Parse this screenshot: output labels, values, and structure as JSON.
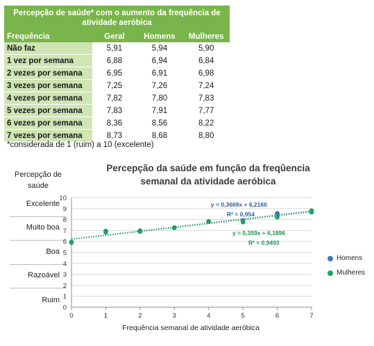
{
  "table": {
    "title": "Percepção de saúde* com o aumento da frequência de atividade aeróbica",
    "headers": [
      "Frequência",
      "Geral",
      "Homens",
      "Mulheres"
    ],
    "rows": [
      {
        "label": "Não faz",
        "geral": "5,91",
        "homens": "5,94",
        "mulheres": "5,90"
      },
      {
        "label": "1 vez por semana",
        "geral": "6,88",
        "homens": "6,94",
        "mulheres": "6,84"
      },
      {
        "label": "2 vezes por semana",
        "geral": "6,95",
        "homens": "6,91",
        "mulheres": "6,98"
      },
      {
        "label": "3 vezes por semana",
        "geral": "7,25",
        "homens": "7,26",
        "mulheres": "7,24"
      },
      {
        "label": "4 vezes por semana",
        "geral": "7,82",
        "homens": "7,80",
        "mulheres": "7,83"
      },
      {
        "label": "5 vezes por semana",
        "geral": "7,83",
        "homens": "7,91",
        "mulheres": "7,77"
      },
      {
        "label": "6 vezes por semana",
        "geral": "8,36",
        "homens": "8,56",
        "mulheres": "8,22"
      },
      {
        "label": "7 vezes por semana",
        "geral": "8,73",
        "homens": "8,68",
        "mulheres": "8,80"
      }
    ],
    "note": "*considerada de 1 (ruim) a 10 (excelente)"
  },
  "side_scale": {
    "title": "Percepção de saúde",
    "levels": [
      "Excelente",
      "Muito boa",
      "Boa",
      "Razoável",
      "Ruim"
    ]
  },
  "chart_data": {
    "type": "scatter",
    "title": "Percepção da saúde em função da freqûencia semanal da atividade aeróbica",
    "xlabel": "Frequência semanal de atividade aeróbica",
    "ylabel": "",
    "xlim": [
      0,
      7
    ],
    "ylim": [
      0,
      10
    ],
    "x_ticks": [
      0,
      1,
      2,
      3,
      4,
      5,
      6,
      7
    ],
    "y_ticks": [
      0,
      1,
      2,
      3,
      4,
      5,
      6,
      7,
      8,
      9,
      10
    ],
    "grid": "horizontal",
    "legend_position": "right",
    "x": [
      0,
      1,
      2,
      3,
      4,
      5,
      6,
      7
    ],
    "series": [
      {
        "name": "Homens",
        "color": "#4472c4",
        "values": [
          5.94,
          6.94,
          6.91,
          7.26,
          7.8,
          7.91,
          8.56,
          8.68
        ],
        "trendline": {
          "slope": 0.3669,
          "intercept": 6.2166,
          "equation": "y = 0,3669x + 6,2166",
          "r2": "R² = 0,954"
        }
      },
      {
        "name": "Mulheres",
        "color": "#21a35b",
        "values": [
          5.9,
          6.84,
          6.98,
          7.24,
          7.83,
          7.77,
          8.22,
          8.8
        ],
        "trendline": {
          "slope": 0.359,
          "intercept": 6.1896,
          "equation": "y = 0,359x + 6,1896",
          "r2": "R² = 0,9493"
        }
      }
    ]
  }
}
